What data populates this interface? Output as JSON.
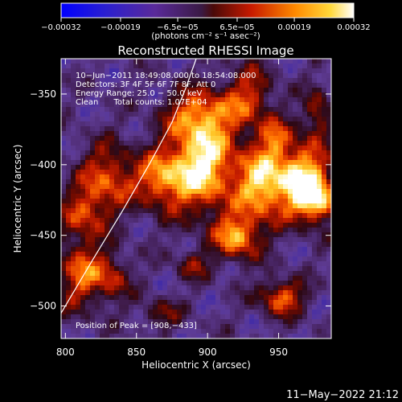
{
  "chart_data": {
    "type": "heatmap",
    "title": "Reconstructed RHESSI Image",
    "xlabel": "Heliocentric X (arcsec)",
    "ylabel": "Heliocentric Y (arcsec)",
    "xlim": [
      797,
      987
    ],
    "ylim": [
      -523,
      -325
    ],
    "x_ticks": [
      800,
      850,
      900,
      950
    ],
    "y_ticks": [
      -350,
      -400,
      -450,
      -500
    ],
    "x_tick_labels": [
      "800",
      "850",
      "900",
      "950"
    ],
    "y_tick_labels": [
      "−350",
      "−400",
      "−450",
      "−500"
    ],
    "colorbar": {
      "range": [
        -0.00032,
        0.00032
      ],
      "tick_values": [
        -0.00032,
        -0.00019,
        -6.5e-05,
        6.5e-05,
        0.00019,
        0.00032
      ],
      "tick_labels": [
        "−0.00032",
        "−0.00019",
        "−6.5e−05",
        "6.5e−05",
        "0.00019",
        "0.00032"
      ],
      "units_label": "(photons cm⁻² s⁻¹ asec⁻²)"
    },
    "annotations": [
      "10−Jun−2011 18:49:08.000 to 18:54:08.000",
      "Detectors: 3F 4F 5F 6F 7F 8F, Att 0",
      "Energy Range: 25.0 − 50.0 keV",
      "Clean      Total counts: 1.07E+04"
    ],
    "peak_label": "Position of Peak = [908,−433]",
    "peak": {
      "x": 908,
      "y": -433
    },
    "limb_curve": [
      [
        797,
        -505
      ],
      [
        820,
        -466
      ],
      [
        840,
        -433
      ],
      [
        860,
        -398
      ],
      [
        875,
        -370
      ],
      [
        885,
        -345
      ],
      [
        892,
        -325
      ]
    ],
    "grid": false,
    "legend": "none"
  },
  "footer": {
    "timestamp": "11−May−2022 21:12"
  }
}
